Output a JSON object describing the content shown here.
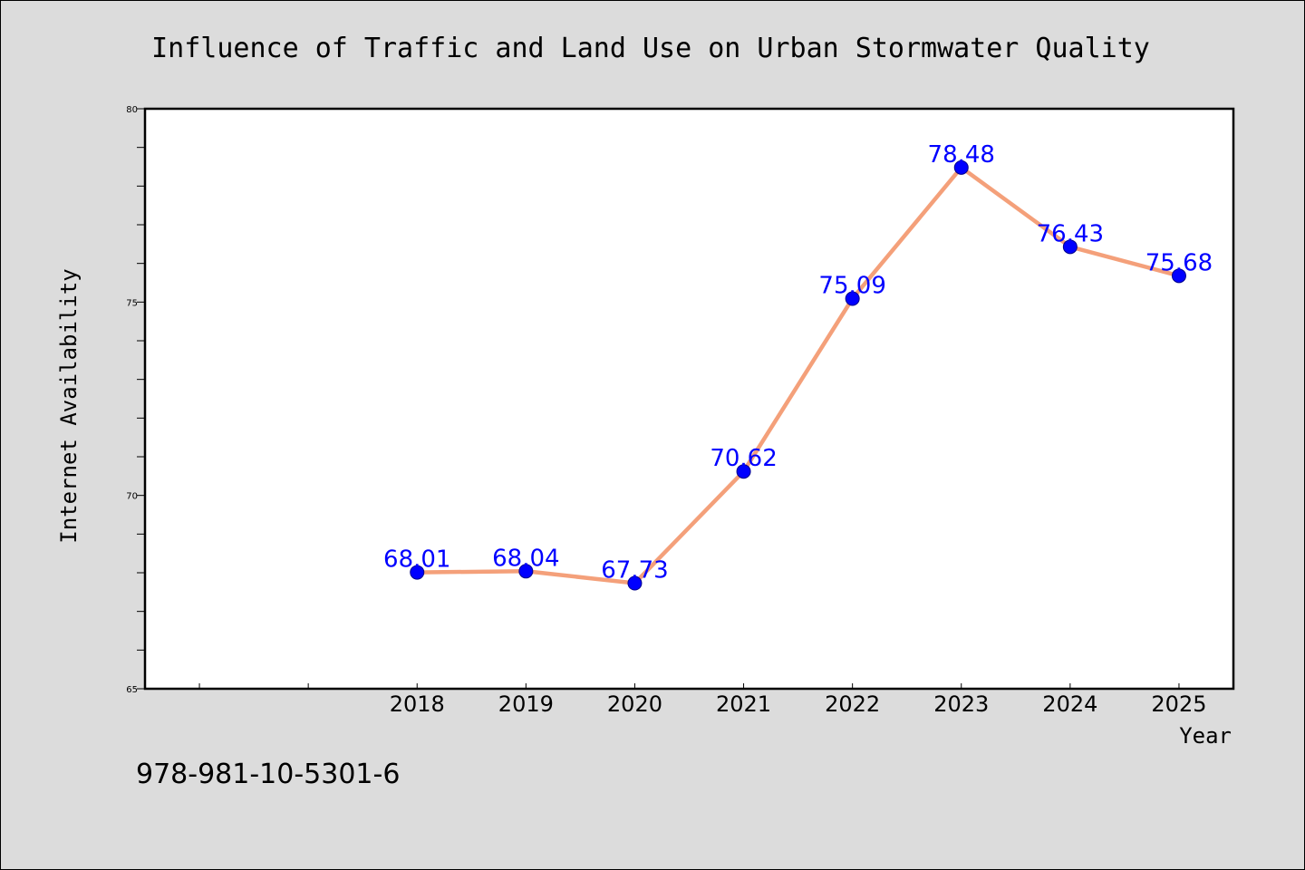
{
  "chart_data": {
    "type": "line",
    "title": "Influence of Traffic and Land Use on Urban Stormwater Quality",
    "xlabel": "Year",
    "ylabel": "Internet Availability",
    "categories": [
      "2018",
      "2019",
      "2020",
      "2021",
      "2022",
      "2023",
      "2024",
      "2025"
    ],
    "x_slots_total": 10,
    "series": [
      {
        "values": [
          68.01,
          68.04,
          67.73,
          70.62,
          75.09,
          78.48,
          76.43,
          75.68
        ],
        "line_color": "#f4a07a",
        "marker_color": "#0000ff"
      }
    ],
    "data_labels": [
      "68.01",
      "68.04",
      "67.73",
      "70.62",
      "75.09",
      "78.48",
      "76.43",
      "75.68"
    ],
    "ylim": [
      65,
      80
    ],
    "yticks": [
      65,
      70,
      75,
      80
    ],
    "ytick_labels": [
      "65",
      "70",
      "75",
      "80"
    ],
    "grid": false,
    "legend": "none",
    "label_color": "#0000ff"
  },
  "footer": {
    "isbn": "978-981-10-5301-6"
  }
}
